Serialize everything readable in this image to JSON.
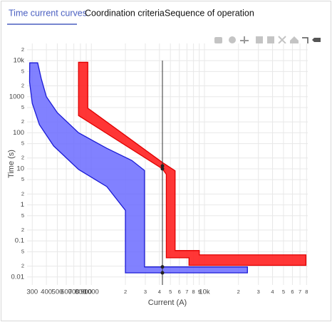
{
  "tabs": [
    "Time current curves",
    "Coordination criteria",
    "Sequence of operation"
  ],
  "chart_data": {
    "type": "area",
    "xlabel": "Current (A)",
    "ylabel": "Time (s)",
    "xscale": "log",
    "yscale": "log",
    "grid": true,
    "xlim": [
      270,
      82000
    ],
    "ylim": [
      0.006,
      30000
    ],
    "xticks": [
      300,
      400,
      500,
      600,
      700,
      800,
      900,
      1000,
      {
        "value": 2000,
        "label": "2"
      },
      {
        "value": 3000,
        "label": "3"
      },
      {
        "value": 4000,
        "label": "4"
      },
      {
        "value": 5000,
        "label": "5"
      },
      {
        "value": 6000,
        "label": "6"
      },
      {
        "value": 7000,
        "label": "7"
      },
      {
        "value": 8000,
        "label": "8"
      },
      {
        "value": 9000,
        "label": "9"
      },
      {
        "value": 10000,
        "label": "10k"
      },
      {
        "value": 20000,
        "label": "2"
      },
      {
        "value": 30000,
        "label": "3"
      },
      {
        "value": 40000,
        "label": "4"
      },
      {
        "value": 50000,
        "label": "5"
      },
      {
        "value": 60000,
        "label": "6"
      },
      {
        "value": 70000,
        "label": "7"
      },
      {
        "value": 80000,
        "label": "8"
      }
    ],
    "yticks": [
      {
        "value": 20000,
        "label": "2"
      },
      {
        "value": 10000,
        "label": "10k"
      },
      {
        "value": 5000,
        "label": "5"
      },
      {
        "value": 2000,
        "label": "2"
      },
      1000,
      {
        "value": 500,
        "label": "5"
      },
      {
        "value": 200,
        "label": "2"
      },
      100,
      {
        "value": 50,
        "label": "5"
      },
      {
        "value": 20,
        "label": "2"
      },
      10,
      {
        "value": 5,
        "label": "5"
      },
      {
        "value": 2,
        "label": "2"
      },
      1,
      {
        "value": 0.5,
        "label": "5"
      },
      {
        "value": 0.2,
        "label": "2"
      },
      0.1,
      {
        "value": 0.05,
        "label": "5"
      },
      {
        "value": 0.02,
        "label": "2"
      },
      0.01
    ],
    "series": [
      {
        "color": "#6b6bff",
        "edge": "#1a1ad6",
        "x": [
          285,
          335,
          360,
          400,
          500,
          770,
          1370,
          2280,
          2950,
          2950,
          24000,
          24000,
          2000,
          2000,
          1370,
          770,
          464,
          347,
          300,
          284
        ],
        "y": [
          8700,
          8700,
          3200,
          1000,
          360,
          100,
          37,
          17,
          9,
          0.019,
          0.019,
          0.013,
          0.013,
          0.7,
          3.2,
          9.6,
          43,
          168,
          656,
          2560
        ]
      },
      {
        "color": "#ff2020",
        "edge": "#e00000",
        "x": [
          770,
          930,
          930,
          4250,
          5500,
          5500,
          9000,
          9000,
          79000,
          79000,
          7300,
          7300,
          4600,
          4600,
          4250,
          770
        ],
        "y": [
          9000,
          9000,
          480,
          15,
          8.8,
          0.054,
          0.054,
          0.041,
          0.041,
          0.021,
          0.021,
          0.034,
          0.034,
          7,
          10,
          300
        ]
      }
    ],
    "vertical_line_x": 4250,
    "markers": {
      "color": "#222",
      "x": [
        4250,
        4250,
        4250,
        4250
      ],
      "y": [
        12,
        10,
        0.019,
        0.013
      ]
    }
  }
}
